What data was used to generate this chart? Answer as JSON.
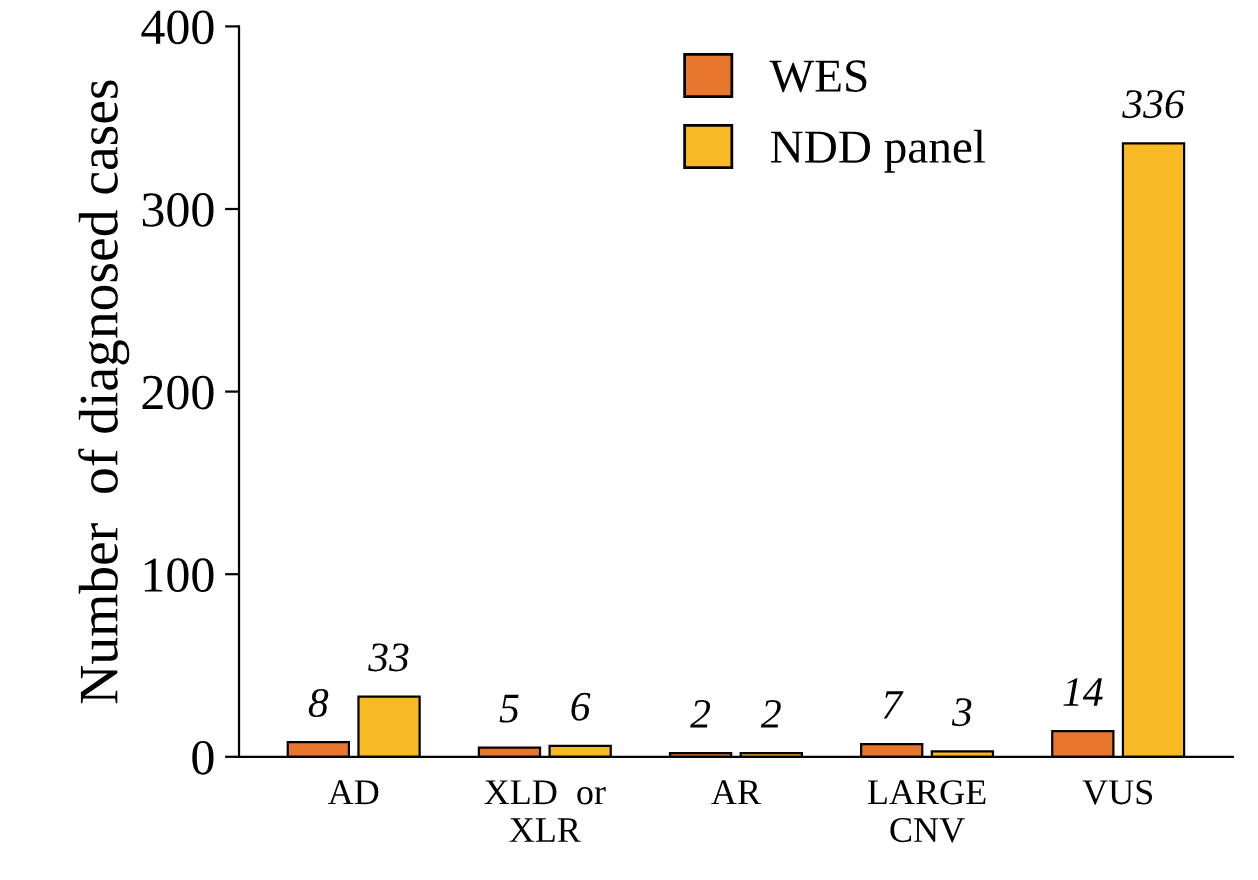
{
  "chart_data": {
    "type": "bar",
    "ylabel": "Number  of diagnosed cases",
    "categories": [
      "AD",
      "XLD  or\nXLR",
      "AR",
      "LARGE\nCNV",
      "VUS"
    ],
    "series": [
      {
        "name": "WES",
        "color": "#e8762d",
        "values": [
          8,
          5,
          2,
          7,
          14
        ]
      },
      {
        "name": "NDD panel",
        "color": "#f7b924",
        "values": [
          33,
          6,
          2,
          3,
          336
        ]
      }
    ],
    "ylim": [
      0,
      400
    ],
    "yticks": [
      0,
      100,
      200,
      300,
      400
    ],
    "grid": false,
    "legend": "top",
    "data_labels": true
  }
}
